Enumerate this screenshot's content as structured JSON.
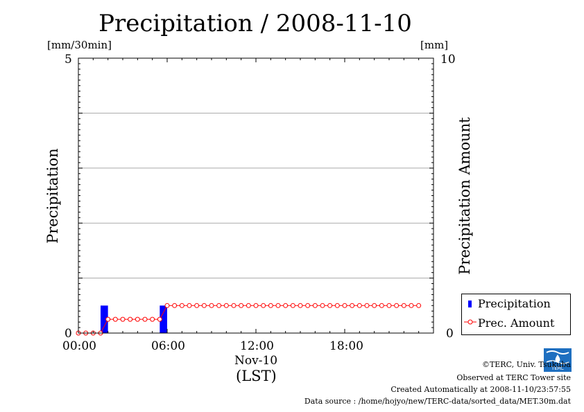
{
  "title": "Precipitation / 2008-11-10",
  "chart_data": {
    "type": "bar",
    "left_unit": "[mm/30min]",
    "right_unit": "[mm]",
    "ylabel": "Precipitation",
    "ylabel_right": "Precipitation Amount",
    "ylim": [
      0,
      5
    ],
    "ylim_right": [
      0,
      10
    ],
    "left_ticks": [
      "0",
      "5"
    ],
    "right_ticks": [
      "0",
      "10"
    ],
    "x_tick_labels": [
      "00:00",
      "06:00",
      "12:00",
      "18:00"
    ],
    "x_date_label": "Nov-10",
    "x_tz_label": "(LST)",
    "grid": true,
    "legend_position": "bottom-right",
    "series": [
      {
        "name": "Precipitation",
        "type": "bar",
        "color": "#0000ff",
        "axis": "left",
        "x_hours": [
          1.5,
          5.5
        ],
        "values": [
          0.5,
          0.5
        ]
      },
      {
        "name": "Prec. Amount",
        "type": "line",
        "color": "#ff0000",
        "marker": "circle",
        "axis": "right",
        "x_hours": [
          0,
          0.5,
          1,
          1.5,
          2,
          2.5,
          3,
          3.5,
          4,
          4.5,
          5,
          5.5,
          6,
          6.5,
          7,
          7.5,
          8,
          8.5,
          9,
          9.5,
          10,
          10.5,
          11,
          11.5,
          12,
          12.5,
          13,
          13.5,
          14,
          14.5,
          15,
          15.5,
          16,
          16.5,
          17,
          17.5,
          18,
          18.5,
          19,
          19.5,
          20,
          20.5,
          21,
          21.5,
          22,
          22.5,
          23
        ],
        "values": [
          0,
          0,
          0,
          0,
          0.5,
          0.5,
          0.5,
          0.5,
          0.5,
          0.5,
          0.5,
          0.5,
          1,
          1,
          1,
          1,
          1,
          1,
          1,
          1,
          1,
          1,
          1,
          1,
          1,
          1,
          1,
          1,
          1,
          1,
          1,
          1,
          1,
          1,
          1,
          1,
          1,
          1,
          1,
          1,
          1,
          1,
          1,
          1,
          1,
          1,
          1
        ]
      }
    ]
  },
  "credits": {
    "copyright": "©TERC, Univ. Tsukuba",
    "observed": "Observed at TERC Tower site",
    "created": "Created Automatically at 2008-11-10/23:57:55",
    "source": "Data source : /home/hojyo/new/TERC-data/sorted_data/MET.30m.dat"
  },
  "logo_text": "TERC"
}
